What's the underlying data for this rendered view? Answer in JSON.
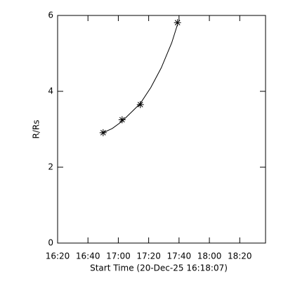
{
  "chart_data": {
    "type": "scatter",
    "xlabel": "Start Time (20-Dec-25 16:18:07)",
    "ylabel": "R/Rs",
    "xlim": [
      980,
      1117
    ],
    "ylim": [
      0,
      6
    ],
    "xticks": [
      {
        "value": 980,
        "label": "16:20"
      },
      {
        "value": 1000,
        "label": "16:40"
      },
      {
        "value": 1020,
        "label": "17:00"
      },
      {
        "value": 1040,
        "label": "17:20"
      },
      {
        "value": 1060,
        "label": "17:40"
      },
      {
        "value": 1080,
        "label": "18:00"
      },
      {
        "value": 1100,
        "label": "18:20"
      }
    ],
    "yticks": [
      0,
      2,
      4,
      6
    ],
    "color": "#000000",
    "series": [
      {
        "marker": "asterisk",
        "x": [
          1010,
          1022.5,
          1034.5,
          1059
        ],
        "values": [
          2.91,
          3.25,
          3.65,
          5.81
        ]
      },
      {
        "marker": "line",
        "x": [
          1010,
          1016,
          1022.5,
          1029.9,
          1034.5,
          1041.4,
          1048.3,
          1055.2,
          1058.9
        ],
        "values": [
          2.91,
          3.02,
          3.21,
          3.5,
          3.68,
          4.1,
          4.62,
          5.28,
          5.75
        ]
      }
    ]
  }
}
